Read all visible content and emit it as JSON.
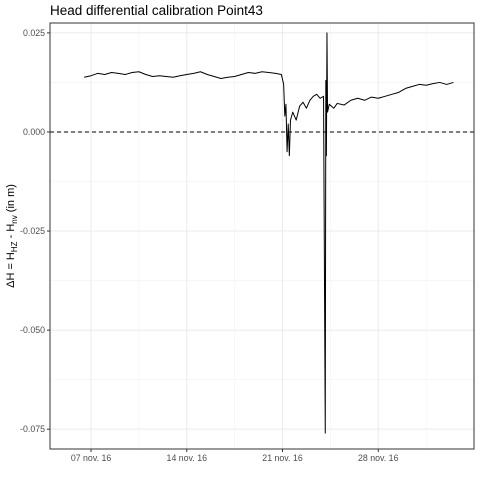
{
  "chart_data": {
    "type": "line",
    "title": "Head differential calibration Point43",
    "ylabel": {
      "parts": [
        {
          "text": "ΔH = H",
          "sub": false
        },
        {
          "text": "HZ",
          "sub": true
        },
        {
          "text": " - H",
          "sub": false
        },
        {
          "text": "nv",
          "sub": true
        },
        {
          "text": " (in m)",
          "sub": false
        }
      ]
    },
    "xlabel": "",
    "x_axis_type": "date",
    "xlim": [
      "2016-11-04",
      "2016-12-05"
    ],
    "ylim": [
      -0.08,
      0.0275
    ],
    "x_ticks": [
      {
        "date": "2016-11-07",
        "label": "07 nov. 16"
      },
      {
        "date": "2016-11-14",
        "label": "14 nov. 16"
      },
      {
        "date": "2016-11-21",
        "label": "21 nov. 16"
      },
      {
        "date": "2016-11-28",
        "label": "28 nov. 16"
      }
    ],
    "y_ticks": [
      {
        "value": 0.025,
        "label": "0.025"
      },
      {
        "value": 0.0,
        "label": "0.000"
      },
      {
        "value": -0.025,
        "label": "-0.025"
      },
      {
        "value": -0.05,
        "label": "-0.050"
      },
      {
        "value": -0.075,
        "label": "-0.075"
      }
    ],
    "reference_line": {
      "y": 0.0,
      "style": "dashed",
      "color": "#000000"
    },
    "grid": true,
    "legend": "none",
    "series": [
      {
        "color": "#000000",
        "points": [
          {
            "x": "2016-11-06 12:00",
            "y": 0.0138
          },
          {
            "x": "2016-11-07 00:00",
            "y": 0.0142
          },
          {
            "x": "2016-11-07 12:00",
            "y": 0.0148
          },
          {
            "x": "2016-11-08 00:00",
            "y": 0.0145
          },
          {
            "x": "2016-11-08 12:00",
            "y": 0.015
          },
          {
            "x": "2016-11-09 00:00",
            "y": 0.0148
          },
          {
            "x": "2016-11-09 12:00",
            "y": 0.0145
          },
          {
            "x": "2016-11-10 00:00",
            "y": 0.015
          },
          {
            "x": "2016-11-10 12:00",
            "y": 0.0152
          },
          {
            "x": "2016-11-11 00:00",
            "y": 0.0145
          },
          {
            "x": "2016-11-11 12:00",
            "y": 0.014
          },
          {
            "x": "2016-11-12 00:00",
            "y": 0.0142
          },
          {
            "x": "2016-11-12 12:00",
            "y": 0.014
          },
          {
            "x": "2016-11-13 00:00",
            "y": 0.0138
          },
          {
            "x": "2016-11-13 12:00",
            "y": 0.0142
          },
          {
            "x": "2016-11-14 00:00",
            "y": 0.0145
          },
          {
            "x": "2016-11-14 12:00",
            "y": 0.0148
          },
          {
            "x": "2016-11-15 00:00",
            "y": 0.0152
          },
          {
            "x": "2016-11-15 12:00",
            "y": 0.0145
          },
          {
            "x": "2016-11-16 00:00",
            "y": 0.014
          },
          {
            "x": "2016-11-16 12:00",
            "y": 0.0135
          },
          {
            "x": "2016-11-17 00:00",
            "y": 0.0138
          },
          {
            "x": "2016-11-17 12:00",
            "y": 0.014
          },
          {
            "x": "2016-11-18 00:00",
            "y": 0.0145
          },
          {
            "x": "2016-11-18 12:00",
            "y": 0.015
          },
          {
            "x": "2016-11-19 00:00",
            "y": 0.0148
          },
          {
            "x": "2016-11-19 12:00",
            "y": 0.0152
          },
          {
            "x": "2016-11-20 00:00",
            "y": 0.015
          },
          {
            "x": "2016-11-20 12:00",
            "y": 0.0148
          },
          {
            "x": "2016-11-20 22:00",
            "y": 0.0145
          },
          {
            "x": "2016-11-21 02:00",
            "y": 0.012
          },
          {
            "x": "2016-11-21 04:00",
            "y": 0.004
          },
          {
            "x": "2016-11-21 06:00",
            "y": 0.007
          },
          {
            "x": "2016-11-21 08:00",
            "y": -0.005
          },
          {
            "x": "2016-11-21 10:00",
            "y": 0.002
          },
          {
            "x": "2016-11-21 12:00",
            "y": -0.006
          },
          {
            "x": "2016-11-21 14:00",
            "y": 0.003
          },
          {
            "x": "2016-11-21 18:00",
            "y": 0.005
          },
          {
            "x": "2016-11-22 00:00",
            "y": 0.003
          },
          {
            "x": "2016-11-22 06:00",
            "y": 0.0065
          },
          {
            "x": "2016-11-22 12:00",
            "y": 0.0075
          },
          {
            "x": "2016-11-22 18:00",
            "y": 0.006
          },
          {
            "x": "2016-11-23 00:00",
            "y": 0.008
          },
          {
            "x": "2016-11-23 06:00",
            "y": 0.009
          },
          {
            "x": "2016-11-23 12:00",
            "y": 0.0095
          },
          {
            "x": "2016-11-23 18:00",
            "y": 0.0085
          },
          {
            "x": "2016-11-24 00:00",
            "y": 0.009
          },
          {
            "x": "2016-11-24 03:00",
            "y": -0.076
          },
          {
            "x": "2016-11-24 04:00",
            "y": 0.013
          },
          {
            "x": "2016-11-24 05:00",
            "y": -0.006
          },
          {
            "x": "2016-11-24 06:00",
            "y": 0.025
          },
          {
            "x": "2016-11-24 07:00",
            "y": 0.005
          },
          {
            "x": "2016-11-24 10:00",
            "y": 0.007
          },
          {
            "x": "2016-11-24 18:00",
            "y": 0.006
          },
          {
            "x": "2016-11-25 00:00",
            "y": 0.0072
          },
          {
            "x": "2016-11-25 12:00",
            "y": 0.0068
          },
          {
            "x": "2016-11-26 00:00",
            "y": 0.008
          },
          {
            "x": "2016-11-26 12:00",
            "y": 0.0085
          },
          {
            "x": "2016-11-27 00:00",
            "y": 0.008
          },
          {
            "x": "2016-11-27 12:00",
            "y": 0.0088
          },
          {
            "x": "2016-11-28 00:00",
            "y": 0.0085
          },
          {
            "x": "2016-11-28 12:00",
            "y": 0.009
          },
          {
            "x": "2016-11-29 00:00",
            "y": 0.0095
          },
          {
            "x": "2016-11-29 12:00",
            "y": 0.01
          },
          {
            "x": "2016-11-30 00:00",
            "y": 0.011
          },
          {
            "x": "2016-11-30 12:00",
            "y": 0.0115
          },
          {
            "x": "2016-12-01 00:00",
            "y": 0.012
          },
          {
            "x": "2016-12-01 12:00",
            "y": 0.0118
          },
          {
            "x": "2016-12-02 00:00",
            "y": 0.0122
          },
          {
            "x": "2016-12-02 12:00",
            "y": 0.0125
          },
          {
            "x": "2016-12-03 00:00",
            "y": 0.012
          },
          {
            "x": "2016-12-03 12:00",
            "y": 0.0125
          }
        ]
      }
    ]
  }
}
